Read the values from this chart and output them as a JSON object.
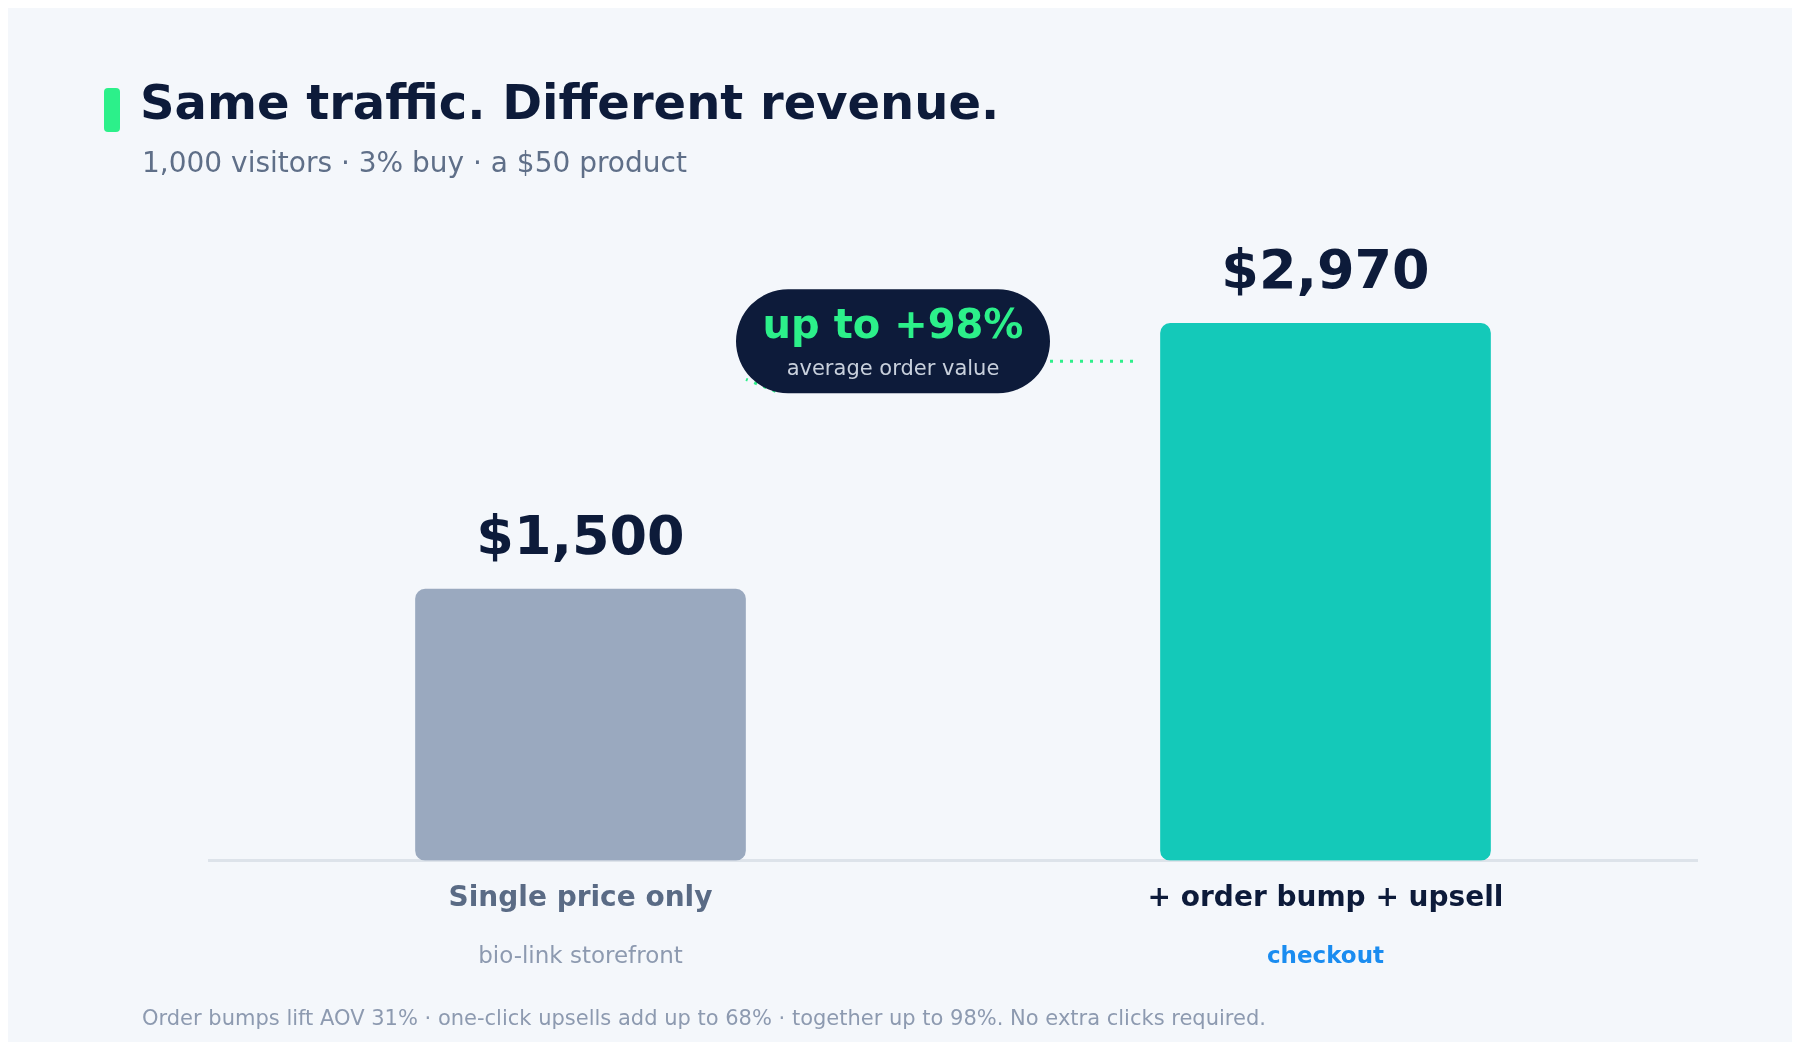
{
  "chart_data": {
    "type": "bar",
    "title": "Same traffic. Different revenue.",
    "subtitle": "1,000 visitors · 3% buy · a $50 product",
    "categories": [
      "Single price only",
      "+ order bump + upsell"
    ],
    "values": [
      1500,
      2970
    ],
    "colors": [
      "#9aa9bf",
      "#14c9b9"
    ],
    "value_labels": [
      "$1,500",
      "$2,970"
    ],
    "annotations": [
      "bio-link storefront",
      "checkout",
      "up to +98%",
      "average order value",
      "Order bumps lift AOV 31% · one-click upsells add up to 68% · together up to 98%. No extra clicks required."
    ],
    "grid": false,
    "legend": false,
    "tick_labels": "x"
  }
}
